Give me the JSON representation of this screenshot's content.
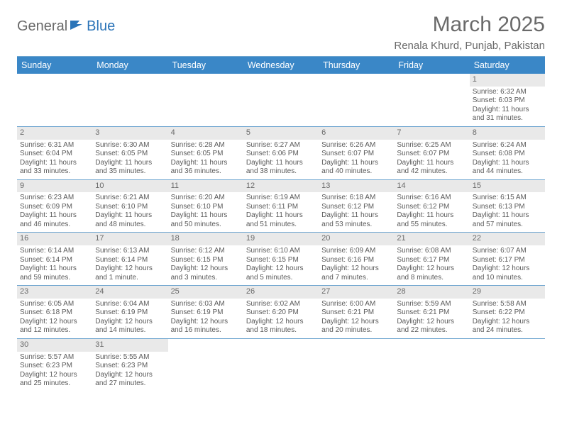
{
  "logo": {
    "word1": "General",
    "word2": "Blue"
  },
  "title": "March 2025",
  "location": "Renala Khurd, Punjab, Pakistan",
  "colors": {
    "header_bg": "#3a87c7",
    "rule": "#6fa6d0",
    "daynum_bg": "#e9e9e9",
    "text": "#5a5a5a"
  },
  "day_names": [
    "Sunday",
    "Monday",
    "Tuesday",
    "Wednesday",
    "Thursday",
    "Friday",
    "Saturday"
  ],
  "weeks": [
    [
      null,
      null,
      null,
      null,
      null,
      null,
      {
        "n": "1",
        "sr": "Sunrise: 6:32 AM",
        "ss": "Sunset: 6:03 PM",
        "dl": "Daylight: 11 hours and 31 minutes."
      }
    ],
    [
      {
        "n": "2",
        "sr": "Sunrise: 6:31 AM",
        "ss": "Sunset: 6:04 PM",
        "dl": "Daylight: 11 hours and 33 minutes."
      },
      {
        "n": "3",
        "sr": "Sunrise: 6:30 AM",
        "ss": "Sunset: 6:05 PM",
        "dl": "Daylight: 11 hours and 35 minutes."
      },
      {
        "n": "4",
        "sr": "Sunrise: 6:28 AM",
        "ss": "Sunset: 6:05 PM",
        "dl": "Daylight: 11 hours and 36 minutes."
      },
      {
        "n": "5",
        "sr": "Sunrise: 6:27 AM",
        "ss": "Sunset: 6:06 PM",
        "dl": "Daylight: 11 hours and 38 minutes."
      },
      {
        "n": "6",
        "sr": "Sunrise: 6:26 AM",
        "ss": "Sunset: 6:07 PM",
        "dl": "Daylight: 11 hours and 40 minutes."
      },
      {
        "n": "7",
        "sr": "Sunrise: 6:25 AM",
        "ss": "Sunset: 6:07 PM",
        "dl": "Daylight: 11 hours and 42 minutes."
      },
      {
        "n": "8",
        "sr": "Sunrise: 6:24 AM",
        "ss": "Sunset: 6:08 PM",
        "dl": "Daylight: 11 hours and 44 minutes."
      }
    ],
    [
      {
        "n": "9",
        "sr": "Sunrise: 6:23 AM",
        "ss": "Sunset: 6:09 PM",
        "dl": "Daylight: 11 hours and 46 minutes."
      },
      {
        "n": "10",
        "sr": "Sunrise: 6:21 AM",
        "ss": "Sunset: 6:10 PM",
        "dl": "Daylight: 11 hours and 48 minutes."
      },
      {
        "n": "11",
        "sr": "Sunrise: 6:20 AM",
        "ss": "Sunset: 6:10 PM",
        "dl": "Daylight: 11 hours and 50 minutes."
      },
      {
        "n": "12",
        "sr": "Sunrise: 6:19 AM",
        "ss": "Sunset: 6:11 PM",
        "dl": "Daylight: 11 hours and 51 minutes."
      },
      {
        "n": "13",
        "sr": "Sunrise: 6:18 AM",
        "ss": "Sunset: 6:12 PM",
        "dl": "Daylight: 11 hours and 53 minutes."
      },
      {
        "n": "14",
        "sr": "Sunrise: 6:16 AM",
        "ss": "Sunset: 6:12 PM",
        "dl": "Daylight: 11 hours and 55 minutes."
      },
      {
        "n": "15",
        "sr": "Sunrise: 6:15 AM",
        "ss": "Sunset: 6:13 PM",
        "dl": "Daylight: 11 hours and 57 minutes."
      }
    ],
    [
      {
        "n": "16",
        "sr": "Sunrise: 6:14 AM",
        "ss": "Sunset: 6:14 PM",
        "dl": "Daylight: 11 hours and 59 minutes."
      },
      {
        "n": "17",
        "sr": "Sunrise: 6:13 AM",
        "ss": "Sunset: 6:14 PM",
        "dl": "Daylight: 12 hours and 1 minute."
      },
      {
        "n": "18",
        "sr": "Sunrise: 6:12 AM",
        "ss": "Sunset: 6:15 PM",
        "dl": "Daylight: 12 hours and 3 minutes."
      },
      {
        "n": "19",
        "sr": "Sunrise: 6:10 AM",
        "ss": "Sunset: 6:15 PM",
        "dl": "Daylight: 12 hours and 5 minutes."
      },
      {
        "n": "20",
        "sr": "Sunrise: 6:09 AM",
        "ss": "Sunset: 6:16 PM",
        "dl": "Daylight: 12 hours and 7 minutes."
      },
      {
        "n": "21",
        "sr": "Sunrise: 6:08 AM",
        "ss": "Sunset: 6:17 PM",
        "dl": "Daylight: 12 hours and 8 minutes."
      },
      {
        "n": "22",
        "sr": "Sunrise: 6:07 AM",
        "ss": "Sunset: 6:17 PM",
        "dl": "Daylight: 12 hours and 10 minutes."
      }
    ],
    [
      {
        "n": "23",
        "sr": "Sunrise: 6:05 AM",
        "ss": "Sunset: 6:18 PM",
        "dl": "Daylight: 12 hours and 12 minutes."
      },
      {
        "n": "24",
        "sr": "Sunrise: 6:04 AM",
        "ss": "Sunset: 6:19 PM",
        "dl": "Daylight: 12 hours and 14 minutes."
      },
      {
        "n": "25",
        "sr": "Sunrise: 6:03 AM",
        "ss": "Sunset: 6:19 PM",
        "dl": "Daylight: 12 hours and 16 minutes."
      },
      {
        "n": "26",
        "sr": "Sunrise: 6:02 AM",
        "ss": "Sunset: 6:20 PM",
        "dl": "Daylight: 12 hours and 18 minutes."
      },
      {
        "n": "27",
        "sr": "Sunrise: 6:00 AM",
        "ss": "Sunset: 6:21 PM",
        "dl": "Daylight: 12 hours and 20 minutes."
      },
      {
        "n": "28",
        "sr": "Sunrise: 5:59 AM",
        "ss": "Sunset: 6:21 PM",
        "dl": "Daylight: 12 hours and 22 minutes."
      },
      {
        "n": "29",
        "sr": "Sunrise: 5:58 AM",
        "ss": "Sunset: 6:22 PM",
        "dl": "Daylight: 12 hours and 24 minutes."
      }
    ],
    [
      {
        "n": "30",
        "sr": "Sunrise: 5:57 AM",
        "ss": "Sunset: 6:23 PM",
        "dl": "Daylight: 12 hours and 25 minutes."
      },
      {
        "n": "31",
        "sr": "Sunrise: 5:55 AM",
        "ss": "Sunset: 6:23 PM",
        "dl": "Daylight: 12 hours and 27 minutes."
      },
      null,
      null,
      null,
      null,
      null
    ]
  ]
}
